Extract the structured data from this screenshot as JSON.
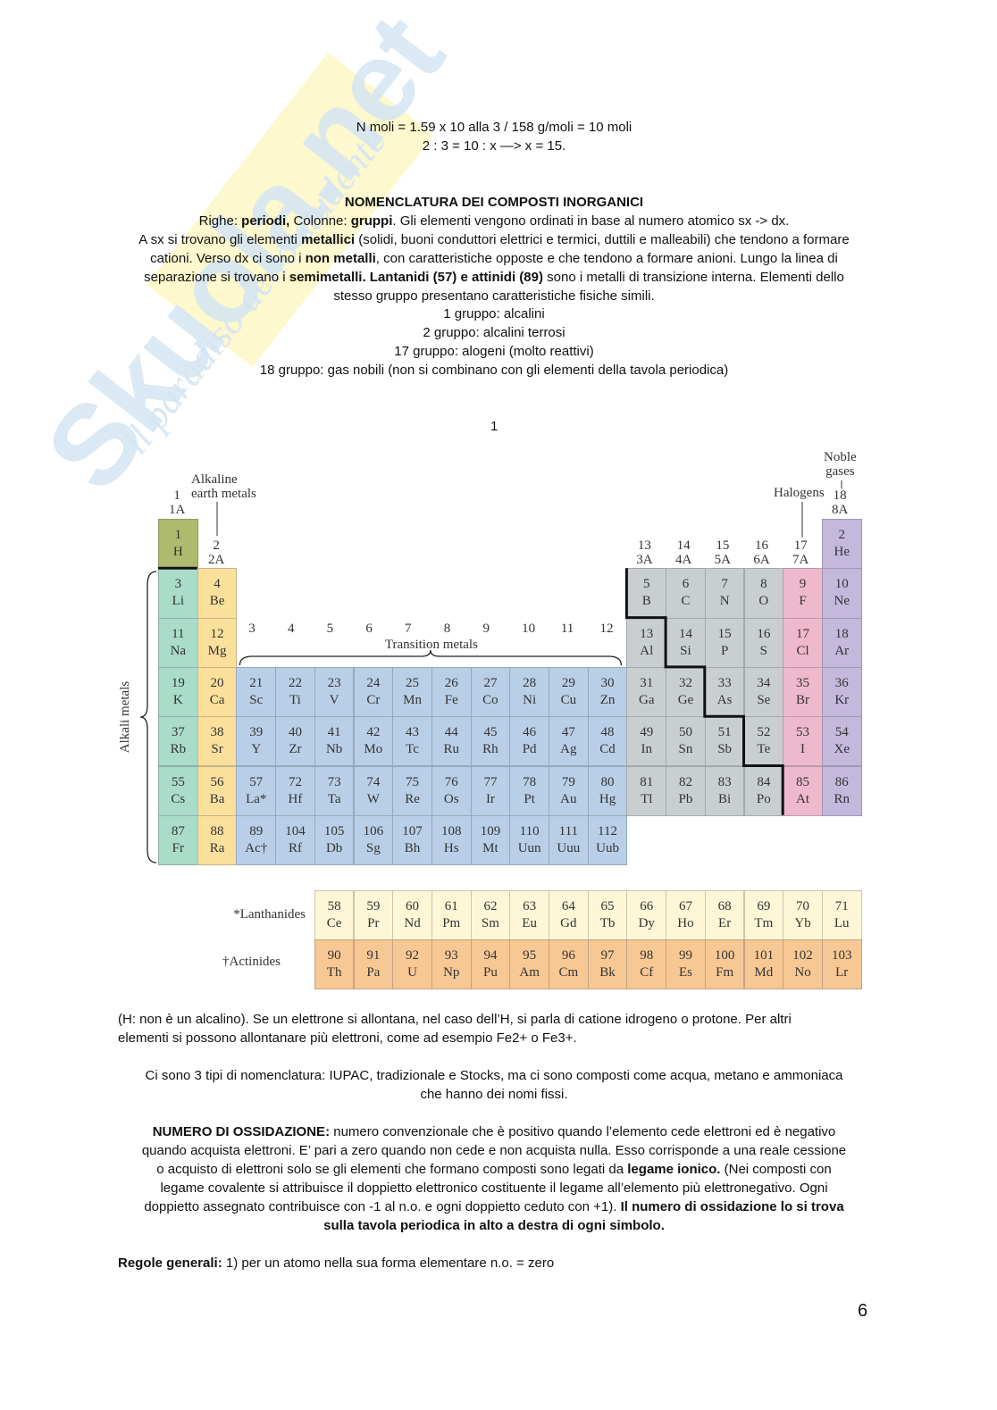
{
  "watermark": {
    "logo_text": "Skuola.net",
    "tagline": "il paradiso dello studente"
  },
  "blocks": [
    {
      "align": "center",
      "lines": [
        [
          [
            "N moli = 1.59 x 10 alla 3 / 158 g/moli = 10 moli",
            0
          ]
        ],
        [
          [
            "2 : 3 = 10 : x —> x = 15.",
            0
          ]
        ]
      ]
    },
    {
      "align": "center",
      "lines": [
        [
          [
            "NOMENCLATURA DEI COMPOSTI INORGANICI",
            1
          ]
        ],
        [
          [
            "Righe: ",
            0
          ],
          [
            "periodi,",
            1
          ],
          [
            " Colonne: ",
            0
          ],
          [
            "gruppi",
            1
          ],
          [
            ". Gli elementi vengono ordinati in base al numero atomico sx -> dx.",
            0
          ]
        ],
        [
          [
            "A sx si trovano gli elementi ",
            0
          ],
          [
            "metallici",
            1
          ],
          [
            " (solidi, buoni conduttori elettrici e termici, duttili e malleabili) che tendono a formare",
            0
          ]
        ],
        [
          [
            "cationi. Verso dx ci sono i ",
            0
          ],
          [
            "non metalli",
            1
          ],
          [
            ", con caratteristiche opposte e che tendono a formare anioni. Lungo la linea di",
            0
          ]
        ],
        [
          [
            "separazione si trovano i ",
            0
          ],
          [
            "semimetalli. Lantanidi (57) e attinidi (89)",
            1
          ],
          [
            " sono i metalli di transizione interna. Elementi dello",
            0
          ]
        ],
        [
          [
            "stesso gruppo presentano caratteristiche fisiche simili.",
            0
          ]
        ],
        [
          [
            "1 gruppo: alcalini",
            0
          ]
        ],
        [
          [
            "2 gruppo: alcalini terrosi",
            0
          ]
        ],
        [
          [
            "17 gruppo: alogeni (molto reattivi)",
            0
          ]
        ],
        [
          [
            "18 gruppo: gas nobili (non si combinano con gli elementi della tavola periodica)",
            0
          ]
        ]
      ]
    },
    {
      "align": "left",
      "lines": [
        [
          [
            "(H: non è un alcalino). Se un elettrone si allontana, nel caso dell’H, si parla di catione idrogeno o protone. Per altri",
            0
          ]
        ],
        [
          [
            "elementi si possono allontanare più elettroni, come ad esempio Fe2+ o Fe3+.",
            0
          ]
        ]
      ]
    },
    {
      "align": "center",
      "lines": [
        [
          [
            "Ci sono 3 tipi di nomenclatura: IUPAC, tradizionale e Stocks, ma ci sono composti come acqua, metano e ammoniaca",
            0
          ]
        ],
        [
          [
            "che hanno dei nomi fissi.",
            0
          ]
        ]
      ]
    },
    {
      "align": "center",
      "lines": [
        [
          [
            "NUMERO DI OSSIDAZIONE:",
            1
          ],
          [
            " numero convenzionale che è positivo quando l’elemento cede elettroni ed è negativo",
            0
          ]
        ],
        [
          [
            "quando acquista elettroni.  E’ pari a zero quando non cede e non acquista nulla. Esso corrisponde a una reale cessione",
            0
          ]
        ],
        [
          [
            "o acquisto di elettroni solo se gli elementi che formano composti sono legati da ",
            0
          ],
          [
            "legame ionico.",
            1
          ],
          [
            "  (Nei composti con",
            0
          ]
        ],
        [
          [
            "legame covalente si attribuisce il doppietto elettronico costituente il legame all’elemento più elettronegativo. Ogni",
            0
          ]
        ],
        [
          [
            "doppietto assegnato contribuisce con -1 al n.o. e ogni doppietto ceduto con +1).  ",
            0
          ],
          [
            "Il numero di ossidazione lo si trova",
            1
          ]
        ],
        [
          [
            "sulla tavola periodica in alto a destra di ogni simbolo.",
            1
          ]
        ]
      ]
    },
    {
      "align": "left",
      "lines": [
        [
          [
            "Regole generali:",
            1
          ],
          [
            " 1) per un atomo nella sua forma elementare n.o. = zero",
            0
          ]
        ]
      ]
    }
  ],
  "figure_number": "1",
  "page_number": "6",
  "periodic_table": {
    "labels": {
      "group1": [
        "1",
        "1A"
      ],
      "group2": [
        "2",
        "2A"
      ],
      "alkaline_earth": [
        "Alkaline",
        "earth metals"
      ],
      "groups_transition": [
        "3",
        "4",
        "5",
        "6",
        "7",
        "8",
        "9",
        "10",
        "11",
        "12"
      ],
      "transition_metals": "Transition metals",
      "groups_p": [
        [
          "13",
          "3A"
        ],
        [
          "14",
          "4A"
        ],
        [
          "15",
          "5A"
        ],
        [
          "16",
          "6A"
        ],
        [
          "17",
          "7A"
        ]
      ],
      "halogens": "Halogens",
      "noble_gases": [
        "Noble",
        "gases"
      ],
      "group18": [
        "18",
        "8A"
      ],
      "alkali_metals": "Alkali metals",
      "lanthanides": "*Lanthanides",
      "actinides": "†Actinides"
    },
    "colors": {
      "hydrogen": "#aebb6e",
      "alkali": "#a9dcc9",
      "alkaline_earth": "#fbe09c",
      "transition": "#b9cfe7",
      "other": "#c9cfd1",
      "halogen": "#efb9cd",
      "noble": "#c4b8dd",
      "lanthanide": "#fdf7d8",
      "actinide": "#f8c894"
    },
    "periods": [
      [
        "1 H 1",
        "2 He 18"
      ],
      [
        "3 Li 1",
        "4 Be 2",
        "5 B 13",
        "6 C 14",
        "7 N 15",
        "8 O 16",
        "9 F 17",
        "10 Ne 18"
      ],
      [
        "11 Na 1",
        "12 Mg 2",
        "13 Al 13",
        "14 Si 14",
        "15 P 15",
        "16 S 16",
        "17 Cl 17",
        "18 Ar 18"
      ],
      [
        "19 K",
        "20 Ca",
        "21 Sc",
        "22 Ti",
        "23 V",
        "24 Cr",
        "25 Mn",
        "26 Fe",
        "27 Co",
        "28 Ni",
        "29 Cu",
        "30 Zn",
        "31 Ga",
        "32 Ge",
        "33 As",
        "34 Se",
        "35 Br",
        "36 Kr"
      ],
      [
        "37 Rb",
        "38 Sr",
        "39 Y",
        "40 Zr",
        "41 Nb",
        "42 Mo",
        "43 Tc",
        "44 Ru",
        "45 Rh",
        "46 Pd",
        "47 Ag",
        "48 Cd",
        "49 In",
        "50 Sn",
        "51 Sb",
        "52 Te",
        "53 I",
        "54 Xe"
      ],
      [
        "55 Cs",
        "56 Ba",
        "57 La*",
        "72 Hf",
        "73 Ta",
        "74 W",
        "75 Re",
        "76 Os",
        "77 Ir",
        "78 Pt",
        "79 Au",
        "80 Hg",
        "81 Tl",
        "82 Pb",
        "83 Bi",
        "84 Po",
        "85 At",
        "86 Rn"
      ],
      [
        "87 Fr",
        "88 Ra",
        "89 Ac†",
        "104 Rf",
        "105 Db",
        "106 Sg",
        "107 Bh",
        "108 Hs",
        "109 Mt",
        "110 Uun",
        "111 Uuu",
        "112 Uub"
      ]
    ],
    "lanthanides": [
      "58 Ce",
      "59 Pr",
      "60 Nd",
      "61 Pm",
      "62 Sm",
      "63 Eu",
      "64 Gd",
      "65 Tb",
      "66 Dy",
      "67 Ho",
      "68 Er",
      "69 Tm",
      "70 Yb",
      "71 Lu"
    ],
    "actinides": [
      "90 Th",
      "91 Pa",
      "92 U",
      "93 Np",
      "94 Pu",
      "95 Am",
      "96 Cm",
      "97 Bk",
      "98 Cf",
      "99 Es",
      "100 Fm",
      "101 Md",
      "102 No",
      "103 Lr"
    ]
  }
}
